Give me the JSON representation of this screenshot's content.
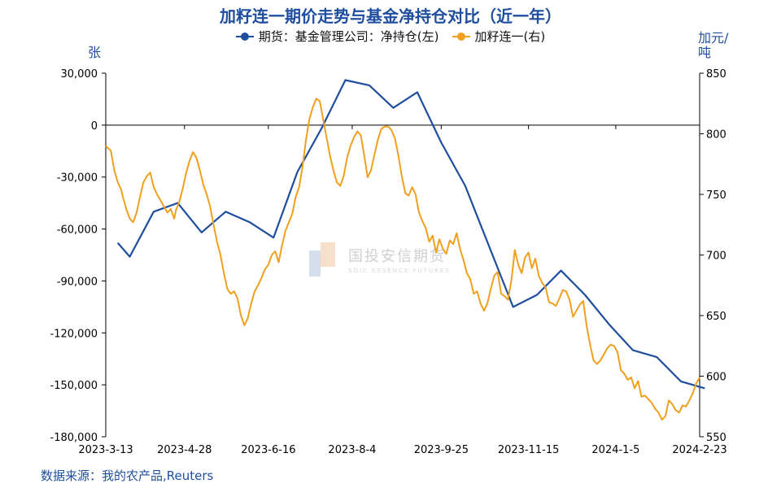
{
  "chart_data": {
    "type": "line",
    "title": "加籽连一期价走势与基金净持仓对比（近一年）",
    "left_unit": "张",
    "right_unit": "加元/吨",
    "left_axis": {
      "min": -180000,
      "max": 30000,
      "ticks": [
        30000,
        0,
        -30000,
        -60000,
        -90000,
        -120000,
        -150000,
        -180000
      ],
      "tick_labels": [
        "30,000",
        "0",
        "-30,000",
        "-60,000",
        "-90,000",
        "-120,000",
        "-150,000",
        "-180,000"
      ]
    },
    "right_axis": {
      "min": 550,
      "max": 850,
      "ticks": [
        850,
        800,
        750,
        700,
        650,
        600,
        550
      ],
      "tick_labels": [
        "850",
        "800",
        "750",
        "700",
        "650",
        "600",
        "550"
      ]
    },
    "x_axis": {
      "start_day": 0,
      "end_day": 347,
      "tick_days": [
        0,
        46,
        95,
        144,
        196,
        247,
        298,
        347
      ],
      "tick_labels": [
        "2023-3-13",
        "2023-4-28",
        "2023-6-16",
        "2023-8-4",
        "2023-9-25",
        "2023-11-15",
        "2024-1-5",
        "2024-2-23"
      ]
    },
    "grid": false,
    "legend": "top",
    "series": [
      {
        "name": "期货：基金管理公司：净持仓(左)",
        "axis": "left",
        "color": "#1f4e9e",
        "x": [
          7,
          14,
          28,
          42,
          56,
          70,
          84,
          98,
          112,
          126,
          140,
          154,
          168,
          182,
          196,
          210,
          224,
          238,
          252,
          266,
          280,
          294,
          308,
          322,
          336,
          350
        ],
        "y": [
          -68000,
          -76000,
          -50000,
          -45000,
          -62000,
          -50000,
          -56000,
          -65000,
          -27000,
          -2000,
          26000,
          23000,
          10000,
          19000,
          -10000,
          -35000,
          -70000,
          -105000,
          -98000,
          -84000,
          -98000,
          -115000,
          -130000,
          -134000,
          -148000,
          -152000
        ]
      },
      {
        "name": "加籽连一(右)",
        "axis": "right",
        "color": "#f0a01e",
        "x": [
          0,
          3,
          5,
          7,
          9,
          10,
          12,
          14,
          16,
          18,
          20,
          22,
          24,
          26,
          28,
          30,
          32,
          34,
          36,
          38,
          40,
          41,
          43,
          45,
          47,
          49,
          51,
          53,
          55,
          57,
          59,
          61,
          63,
          65,
          67,
          69,
          71,
          73,
          75,
          77,
          79,
          81,
          83,
          85,
          87,
          89,
          91,
          93,
          95,
          97,
          99,
          101,
          103,
          105,
          107,
          109,
          111,
          113,
          115,
          117,
          119,
          121,
          123,
          125,
          127,
          129,
          131,
          133,
          135,
          137,
          139,
          141,
          143,
          145,
          147,
          149,
          151,
          153,
          155,
          157,
          159,
          161,
          163,
          165,
          167,
          169,
          171,
          173,
          175,
          177,
          179,
          181,
          183,
          185,
          187,
          189,
          191,
          193,
          195,
          197,
          199,
          201,
          203,
          205,
          207,
          209,
          211,
          213,
          215,
          217,
          219,
          221,
          223,
          225,
          227,
          229,
          231,
          233,
          235,
          237,
          239,
          241,
          243,
          245,
          247,
          249,
          251,
          253,
          255,
          257,
          259,
          261,
          263,
          265,
          267,
          269,
          271,
          273,
          275,
          277,
          279,
          281,
          283,
          285,
          287,
          289,
          291,
          293,
          295,
          297,
          299,
          301,
          303,
          305,
          307,
          309,
          311,
          313,
          315,
          317,
          319,
          321,
          323,
          325,
          327,
          329,
          331,
          333,
          335,
          337,
          339,
          341,
          343,
          345,
          347
        ],
        "y": [
          790,
          786,
          770,
          760,
          754,
          748,
          738,
          730,
          727,
          735,
          748,
          760,
          765,
          768,
          756,
          750,
          745,
          740,
          735,
          738,
          730,
          737,
          744,
          755,
          768,
          778,
          785,
          780,
          770,
          758,
          750,
          740,
          725,
          711,
          700,
          685,
          672,
          668,
          670,
          664,
          650,
          642,
          648,
          660,
          670,
          675,
          681,
          688,
          692,
          700,
          703,
          694,
          708,
          720,
          727,
          734,
          748,
          756,
          773,
          795,
          812,
          822,
          829,
          827,
          812,
          797,
          782,
          770,
          760,
          757,
          765,
          780,
          790,
          797,
          802,
          799,
          782,
          764,
          770,
          783,
          795,
          804,
          806,
          806,
          803,
          796,
          782,
          765,
          751,
          749,
          756,
          750,
          735,
          728,
          722,
          711,
          716,
          702,
          713,
          705,
          701,
          712,
          709,
          718,
          705,
          696,
          685,
          680,
          668,
          670,
          660,
          654,
          660,
          672,
          683,
          686,
          668,
          666,
          663,
          679,
          704,
          692,
          685,
          698,
          702,
          689,
          697,
          683,
          677,
          673,
          661,
          660,
          658,
          664,
          671,
          670,
          663,
          649,
          654,
          659,
          662,
          641,
          626,
          613,
          610,
          613,
          618,
          623,
          626,
          625,
          620,
          605,
          602,
          597,
          599,
          590,
          596,
          583,
          584,
          581,
          578,
          573,
          570,
          564,
          567,
          580,
          577,
          572,
          570,
          576,
          575,
          580,
          586,
          594,
          599
        ]
      }
    ]
  },
  "source": "数据来源：我的农产品,Reuters",
  "watermark": {
    "cn": "国投安信期货",
    "en": "SDIC ESSENCE FUTURES"
  }
}
